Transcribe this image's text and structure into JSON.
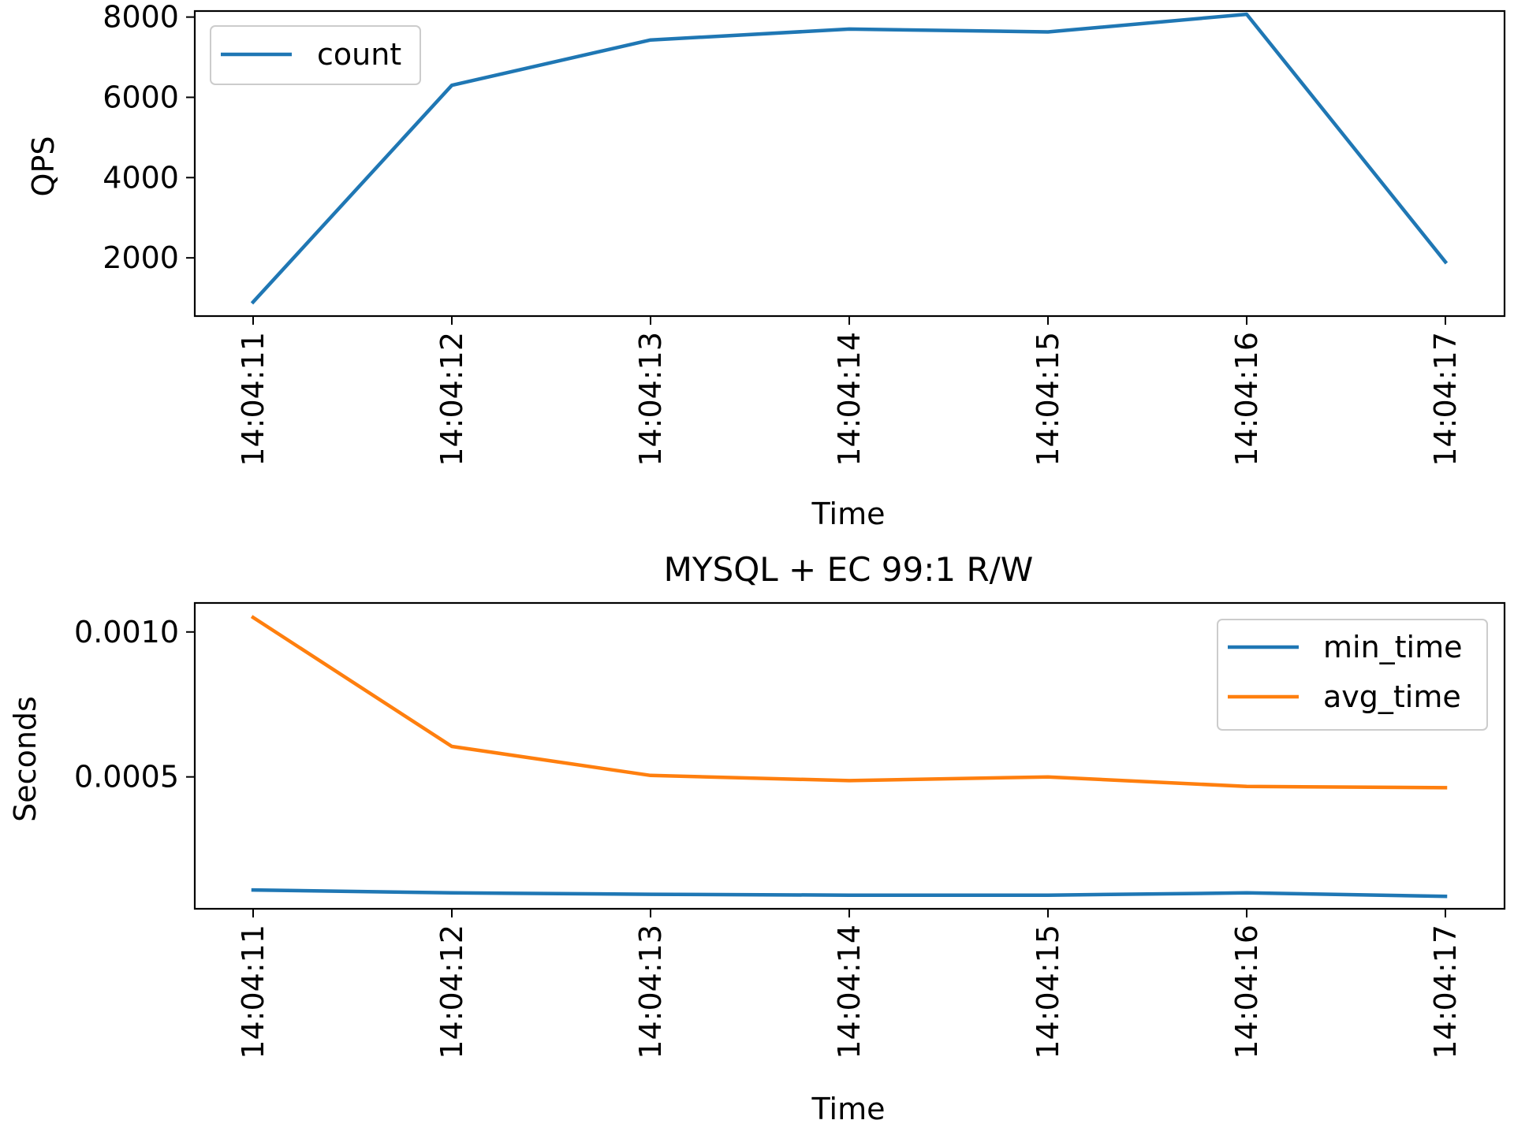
{
  "chart_data": [
    {
      "type": "line",
      "title": "",
      "xlabel": "Time",
      "ylabel": "QPS",
      "categories": [
        "14:04:11",
        "14:04:12",
        "14:04:13",
        "14:04:14",
        "14:04:15",
        "14:04:16",
        "14:04:17"
      ],
      "ylim": [
        550,
        8150
      ],
      "yticks": [
        2000,
        4000,
        6000,
        8000
      ],
      "ytick_labels": [
        "2000",
        "4000",
        "6000",
        "8000"
      ],
      "grid": false,
      "legend": "upper left",
      "series": [
        {
          "name": "count",
          "color": "#1f77b4",
          "values": [
            900,
            6300,
            7430,
            7700,
            7630,
            8070,
            1900
          ]
        }
      ]
    },
    {
      "type": "line",
      "title": "MYSQL + EC 99:1 R/W",
      "xlabel": "Time",
      "ylabel": "Seconds",
      "categories": [
        "14:04:11",
        "14:04:12",
        "14:04:13",
        "14:04:14",
        "14:04:15",
        "14:04:16",
        "14:04:17"
      ],
      "ylim": [
        4.5e-05,
        0.0011
      ],
      "yticks": [
        0.0005,
        0.001
      ],
      "ytick_labels": [
        "0.0005",
        "0.0010"
      ],
      "grid": false,
      "legend": "upper right",
      "series": [
        {
          "name": "min_time",
          "color": "#1f77b4",
          "values": [
            0.00011,
            0.0001,
            9.5e-05,
            9.2e-05,
            9.2e-05,
            0.0001,
            8.8e-05
          ]
        },
        {
          "name": "avg_time",
          "color": "#ff7f0e",
          "values": [
            0.00105,
            0.000605,
            0.000505,
            0.000487,
            0.0005,
            0.000467,
            0.000463
          ]
        }
      ]
    }
  ]
}
